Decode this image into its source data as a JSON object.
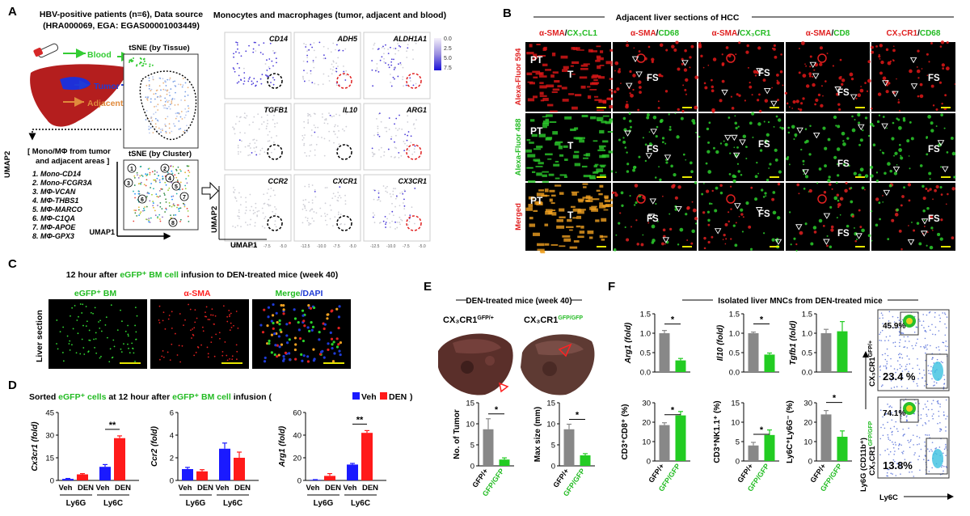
{
  "panels": {
    "A": "A",
    "B": "B",
    "C": "C",
    "D": "D",
    "E": "E",
    "F": "F"
  },
  "A": {
    "title": "HBV-positive patients (n=6), Data source",
    "source": "(HRA000069, EGA: EGAS00001003449)",
    "blood": "Blood",
    "tumor": "Tumor",
    "adjacent": "Adjacent",
    "tsne_tissue": "tSNE (by Tissue)",
    "tsne_cluster": "tSNE (by Cluster)",
    "mono_title_1": "[ Mono/MΦ from tumor",
    "mono_title_2": "and adjacent areas ]",
    "clusters": [
      "1. Mono-CD14",
      "2. Mono-FCGR3A",
      "3. MΦ-VCAN",
      "4. MΦ-THBS1",
      "5. MΦ-MARCO",
      "6. MΦ-C1QA",
      "7. MΦ-APOE",
      "8. MΦ-GPX3"
    ],
    "cluster_numbers": [
      "1",
      "2",
      "3",
      "4",
      "5",
      "6",
      "7",
      "8"
    ],
    "umap1": "UMAP1",
    "umap2": "UMAP2",
    "feature_title": "Monocytes and macrophages (tumor, adjacent and blood)",
    "genes": [
      "CD14",
      "ADH5",
      "ALDH1A1",
      "TGFB1",
      "IL10",
      "ARG1",
      "CCR2",
      "CXCR1",
      "CX3CR1"
    ],
    "red_circle_genes": [
      "ADH5",
      "ALDH1A1",
      "ARG1",
      "CX3CR1"
    ],
    "colorbar_ticks": [
      "0.0",
      "2.5",
      "5.0",
      "7.5"
    ],
    "xticks": [
      "-12.5",
      "-10.0",
      "-7.5",
      "-5.0"
    ]
  },
  "B": {
    "title": "Adjacent liver sections of HCC",
    "columns": [
      {
        "red": "α-SMA",
        "green": "CX₃CL1"
      },
      {
        "red": "α-SMA",
        "green": "CD68"
      },
      {
        "red": "α-SMA",
        "green": "CX₃CR1"
      },
      {
        "red": "α-SMA",
        "green": "CD8"
      },
      {
        "red": "CX₃CR1",
        "green": "CD68"
      }
    ],
    "separator": "/",
    "rows": [
      "Alexa-Fluor 594",
      "Alexa-Fluor 488",
      "Merged"
    ],
    "labels": {
      "PT": "PT",
      "T": "T",
      "FS": "FS"
    }
  },
  "C": {
    "title_pre": "12 hour after ",
    "title_green": "eGFP⁺ BM cell",
    "title_post": " infusion to DEN-treated mice (week 40)",
    "col1": "eGFP⁺ BM",
    "col2": "α-SMA",
    "col3a": "Merge",
    "col3b": "/DAPI",
    "row": "Liver section"
  },
  "D": {
    "title_pre": "Sorted ",
    "title_g1": "eGFP⁺ cells",
    "title_mid": " at 12 hour after ",
    "title_g2": "eGFP⁺ BM cell",
    "title_post": " infusion (",
    "legend_veh": "Veh",
    "legend_den": "DEN",
    "legend_close": ")",
    "sig": "**",
    "groups": [
      "Ly6G",
      "Ly6C"
    ],
    "xlabels": [
      "Veh",
      "DEN",
      "Veh",
      "DEN"
    ],
    "colors": {
      "veh": "#1a1aff",
      "den": "#ff1a1a"
    }
  },
  "E": {
    "title": "DEN-treated mice (week 40)",
    "geno1": "CX₃CR1",
    "geno1sup": "GFP/+",
    "geno2": "CX₃CR1",
    "geno2sup": "GFP/GFP",
    "sig": "*",
    "xl1": "GFP/+",
    "xl2": "GFP/GFP",
    "colors": {
      "het": "#888888",
      "hom": "#22cc22"
    }
  },
  "F": {
    "title": "Isolated liver MNCs from DEN-treated mice",
    "sig": "*",
    "xl1": "GFP/+",
    "xl2": "GFP/GFP",
    "facs": {
      "top_pct": "45.9%",
      "top_bottom_pct": "23.4 %",
      "bot_pct": "74.1%",
      "bot_bottom_pct": "13.8%",
      "y_label": "Ly6G (CD11b⁺)",
      "x_label": "Ly6C",
      "cx_top": "CX₃CR1",
      "cx_top_sup": "GFP/+",
      "cx_bot": "CX₃CR1",
      "cx_bot_sup": "GFP/GFP"
    }
  },
  "chart_data": [
    {
      "type": "bar",
      "id": "D1",
      "ylabel": "Cx3cr1 (fold)",
      "ylim": [
        0,
        45
      ],
      "yticks": [
        0,
        15,
        30,
        45
      ],
      "categories": [
        "Ly6G Veh",
        "Ly6G DEN",
        "Ly6C Veh",
        "Ly6C DEN"
      ],
      "values": [
        1,
        4,
        9,
        28
      ],
      "errors": [
        0.3,
        0.5,
        1.5,
        1.5
      ],
      "colors": [
        "veh",
        "den",
        "veh",
        "den"
      ]
    },
    {
      "type": "bar",
      "id": "D2",
      "ylabel": "Ccr2 (fold)",
      "ylim": [
        0,
        6
      ],
      "yticks": [
        0,
        2,
        4,
        6
      ],
      "categories": [
        "Ly6G Veh",
        "Ly6G DEN",
        "Ly6C Veh",
        "Ly6C DEN"
      ],
      "values": [
        1,
        0.8,
        2.8,
        2
      ],
      "errors": [
        0.15,
        0.15,
        0.5,
        0.5
      ],
      "colors": [
        "veh",
        "den",
        "veh",
        "den"
      ]
    },
    {
      "type": "bar",
      "id": "D3",
      "ylabel": "Arg1 (fold)",
      "ylim": [
        0,
        60
      ],
      "yticks": [
        0,
        20,
        40,
        60
      ],
      "categories": [
        "Ly6G Veh",
        "Ly6G DEN",
        "Ly6C Veh",
        "Ly6C DEN"
      ],
      "values": [
        0.5,
        4,
        14,
        42
      ],
      "errors": [
        0.2,
        2,
        1,
        2
      ],
      "colors": [
        "veh",
        "den",
        "veh",
        "den"
      ]
    },
    {
      "type": "bar",
      "id": "E1",
      "ylabel": "No. of Tumor",
      "ylim": [
        0,
        15
      ],
      "yticks": [
        0,
        5,
        10,
        15
      ],
      "categories": [
        "GFP/+",
        "GFP/GFP"
      ],
      "values": [
        8.7,
        1.5
      ],
      "errors": [
        2.5,
        0.4
      ],
      "colors": [
        "het",
        "hom"
      ]
    },
    {
      "type": "bar",
      "id": "E2",
      "ylabel": "Max size (mm)",
      "ylim": [
        0,
        15
      ],
      "yticks": [
        0,
        5,
        10,
        15
      ],
      "categories": [
        "GFP/+",
        "GFP/GFP"
      ],
      "values": [
        8.7,
        2.5
      ],
      "errors": [
        1.2,
        0.4
      ],
      "colors": [
        "het",
        "hom"
      ]
    },
    {
      "type": "bar",
      "id": "F1",
      "ylabel": "Arg1 (fold)",
      "ylim": [
        0,
        1.5
      ],
      "yticks": [
        "0.0",
        "0.5",
        "1.0",
        "1.5"
      ],
      "categories": [
        "GFP/+",
        "GFP/GFP"
      ],
      "values": [
        1.0,
        0.3
      ],
      "errors": [
        0.07,
        0.05
      ],
      "colors": [
        "het",
        "hom"
      ]
    },
    {
      "type": "bar",
      "id": "F2",
      "ylabel": "Il10 (fold)",
      "ylim": [
        0,
        1.5
      ],
      "yticks": [
        "0.0",
        "0.5",
        "1.0",
        "1.5"
      ],
      "categories": [
        "GFP/+",
        "GFP/GFP"
      ],
      "values": [
        1.0,
        0.45
      ],
      "errors": [
        0.03,
        0.04
      ],
      "colors": [
        "het",
        "hom"
      ]
    },
    {
      "type": "bar",
      "id": "F3",
      "ylabel": "Tgfb1 (fold)",
      "ylim": [
        0,
        1.5
      ],
      "yticks": [
        "0.0",
        "0.5",
        "1.0",
        "1.5"
      ],
      "categories": [
        "GFP/+",
        "GFP/GFP"
      ],
      "values": [
        1.0,
        1.05
      ],
      "errors": [
        0.1,
        0.25
      ],
      "colors": [
        "het",
        "hom"
      ]
    },
    {
      "type": "bar",
      "id": "F4",
      "ylabel": "CD3⁺CD8⁺ (%)",
      "ylim": [
        0,
        30
      ],
      "yticks": [
        0,
        10,
        20,
        30
      ],
      "categories": [
        "GFP/+",
        "GFP/GFP"
      ],
      "values": [
        18.5,
        23.5
      ],
      "errors": [
        1.2,
        2
      ],
      "colors": [
        "het",
        "hom"
      ]
    },
    {
      "type": "bar",
      "id": "F5",
      "ylabel": "CD3⁺NK1.1⁺ (%)",
      "ylim": [
        0,
        15
      ],
      "yticks": [
        0,
        5,
        10,
        15
      ],
      "categories": [
        "GFP/+",
        "GFP/GFP"
      ],
      "values": [
        4,
        6.7
      ],
      "errors": [
        0.8,
        1.3
      ],
      "colors": [
        "het",
        "hom"
      ]
    },
    {
      "type": "bar",
      "id": "F6",
      "ylabel": "Ly6C⁺Ly6G⁻ (%)",
      "ylim": [
        0,
        30
      ],
      "yticks": [
        0,
        10,
        20,
        30
      ],
      "categories": [
        "GFP/+",
        "GFP/GFP"
      ],
      "values": [
        24,
        12.5
      ],
      "errors": [
        2,
        3
      ],
      "colors": [
        "het",
        "hom"
      ]
    }
  ]
}
